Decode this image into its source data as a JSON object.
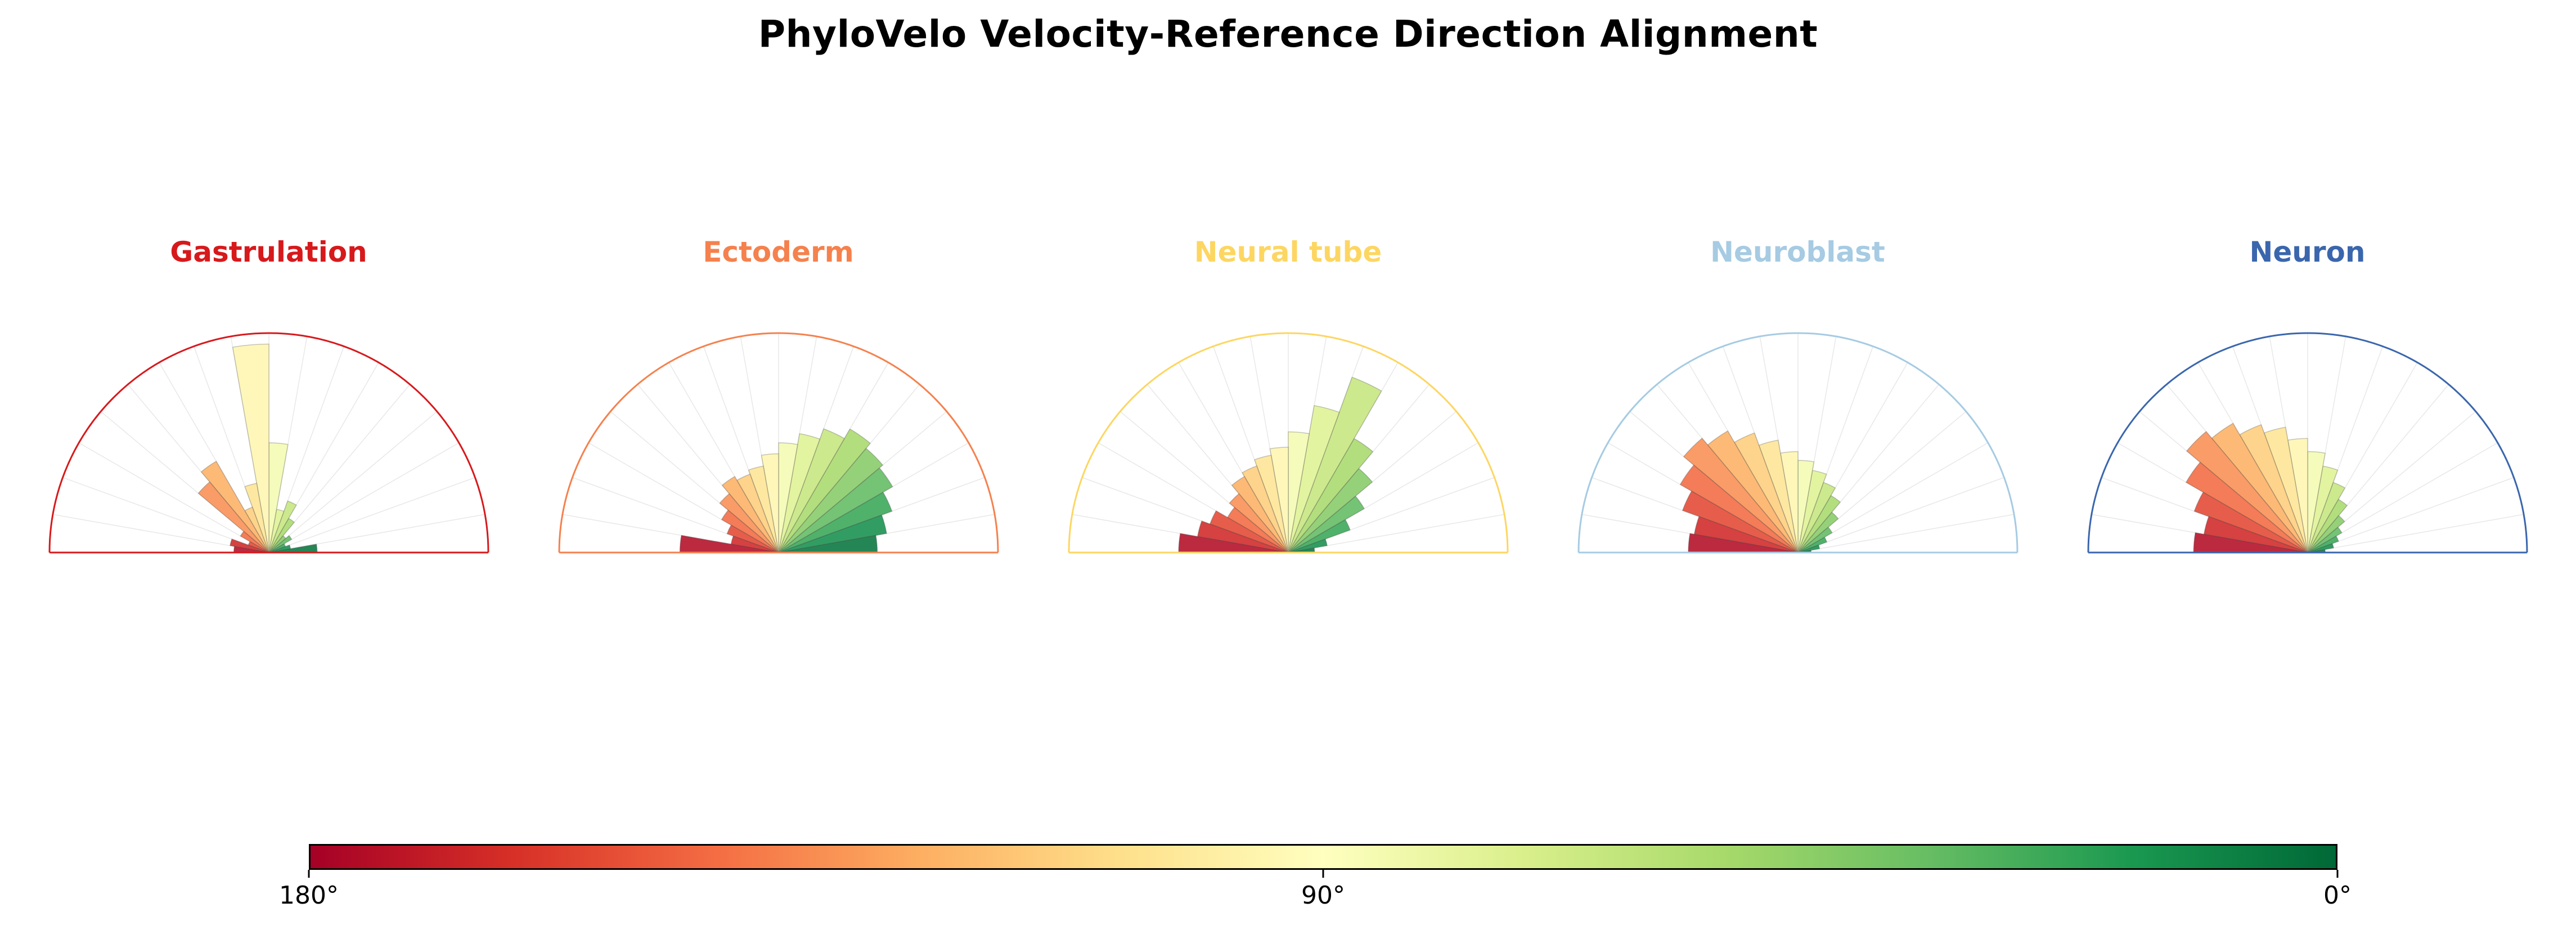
{
  "title": "PhyloVelo Velocity-Reference Direction Alignment",
  "chart_data": {
    "type": "polar_histogram",
    "subtype": "half-circle rose / wind-rose histograms, 5 panels",
    "angle_range_deg": [
      0,
      180
    ],
    "bin_width_deg": 10,
    "values_order": "bin 0 = 0-10 deg (right side, green) ... bin 17 = 170-180 deg (left side, red)",
    "radial_scale": "bar length as fraction of outer semicircle radius",
    "color_encoding": "bar angle mapped to RdYlGn colormap: 180 deg = dark red, 90 deg = pale yellow/white, 0 deg = dark green",
    "colormap_stops": [
      {
        "t": 0.0,
        "color": "#a50026"
      },
      {
        "t": 0.1,
        "color": "#d73027"
      },
      {
        "t": 0.2,
        "color": "#f46d43"
      },
      {
        "t": 0.3,
        "color": "#fdae61"
      },
      {
        "t": 0.4,
        "color": "#fee08b"
      },
      {
        "t": 0.5,
        "color": "#ffffbf"
      },
      {
        "t": 0.6,
        "color": "#d9ef8b"
      },
      {
        "t": 0.7,
        "color": "#a6d96a"
      },
      {
        "t": 0.8,
        "color": "#66bd63"
      },
      {
        "t": 0.9,
        "color": "#1a9850"
      },
      {
        "t": 1.0,
        "color": "#006837"
      }
    ],
    "grid": {
      "spokes_every_deg": 10,
      "spoke_color": "#e8e8e8"
    },
    "panels": [
      {
        "label": "Gastrulation",
        "accent": "#d7191c",
        "values": [
          0.22,
          0.1,
          0.08,
          0.12,
          0.1,
          0.18,
          0.25,
          0.2,
          0.5,
          0.95,
          0.32,
          0.22,
          0.48,
          0.42,
          0.15,
          0.1,
          0.18,
          0.16
        ]
      },
      {
        "label": "Ectoderm",
        "accent": "#f5814d",
        "values": [
          0.45,
          0.5,
          0.55,
          0.6,
          0.62,
          0.65,
          0.6,
          0.55,
          0.5,
          0.45,
          0.4,
          0.38,
          0.4,
          0.35,
          0.3,
          0.25,
          0.22,
          0.45
        ]
      },
      {
        "label": "Neural tube",
        "accent": "#fdd662",
        "values": [
          0.12,
          0.18,
          0.3,
          0.4,
          0.5,
          0.6,
          0.85,
          0.68,
          0.55,
          0.48,
          0.45,
          0.42,
          0.4,
          0.35,
          0.32,
          0.38,
          0.42,
          0.5
        ]
      },
      {
        "label": "Neuroblast",
        "accent": "#a6cbe3",
        "values": [
          0.06,
          0.1,
          0.14,
          0.18,
          0.24,
          0.3,
          0.34,
          0.38,
          0.42,
          0.46,
          0.52,
          0.58,
          0.64,
          0.68,
          0.62,
          0.56,
          0.48,
          0.5
        ]
      },
      {
        "label": "Neuron",
        "accent": "#3a66ad",
        "values": [
          0.08,
          0.12,
          0.15,
          0.18,
          0.22,
          0.28,
          0.34,
          0.4,
          0.46,
          0.52,
          0.58,
          0.62,
          0.68,
          0.72,
          0.64,
          0.55,
          0.48,
          0.52
        ]
      }
    ],
    "colorbar": {
      "left_label": "180°",
      "center_label": "90°",
      "right_label": "0°",
      "orientation": "horizontal",
      "left_value_deg": 180,
      "right_value_deg": 0
    }
  }
}
